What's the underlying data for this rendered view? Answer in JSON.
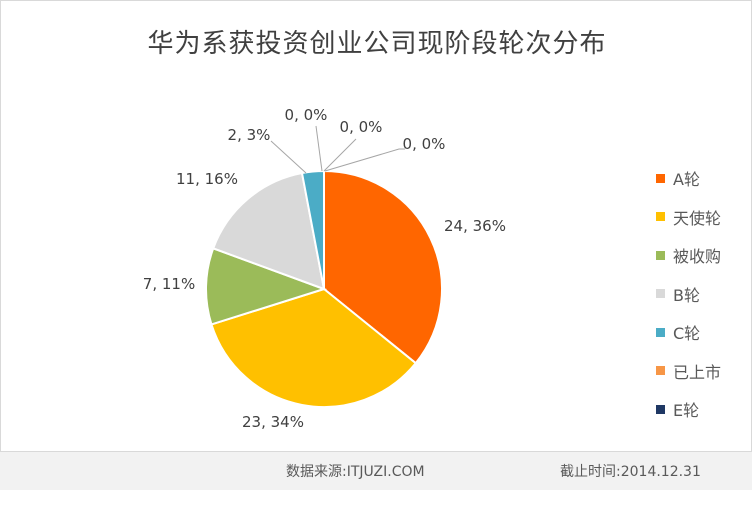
{
  "chart_data": {
    "type": "pie",
    "title": "华为系获投资创业公司现阶段轮次分布",
    "categories": [
      "A轮",
      "天使轮",
      "被收购",
      "B轮",
      "C轮",
      "已上市",
      "E轮"
    ],
    "values": [
      24,
      23,
      7,
      11,
      2,
      0,
      0
    ],
    "percents": [
      36,
      34,
      11,
      16,
      3,
      0,
      0
    ],
    "data_labels": [
      "24, 36%",
      "23, 34%",
      "7, 11%",
      "11, 16%",
      "2, 3%",
      "0, 0%",
      "0, 0%"
    ],
    "extra_label": "0, 0%",
    "colors": [
      "#ff6600",
      "#ffc000",
      "#9bbb59",
      "#d9d9d9",
      "#4bacc6",
      "#f79646",
      "#1f3864"
    ],
    "legend_position": "right",
    "start_angle_deg": 0,
    "direction": "clockwise"
  },
  "footer": {
    "source": "数据来源:ITJUZI.COM",
    "date": "截止时间:2014.12.31"
  }
}
